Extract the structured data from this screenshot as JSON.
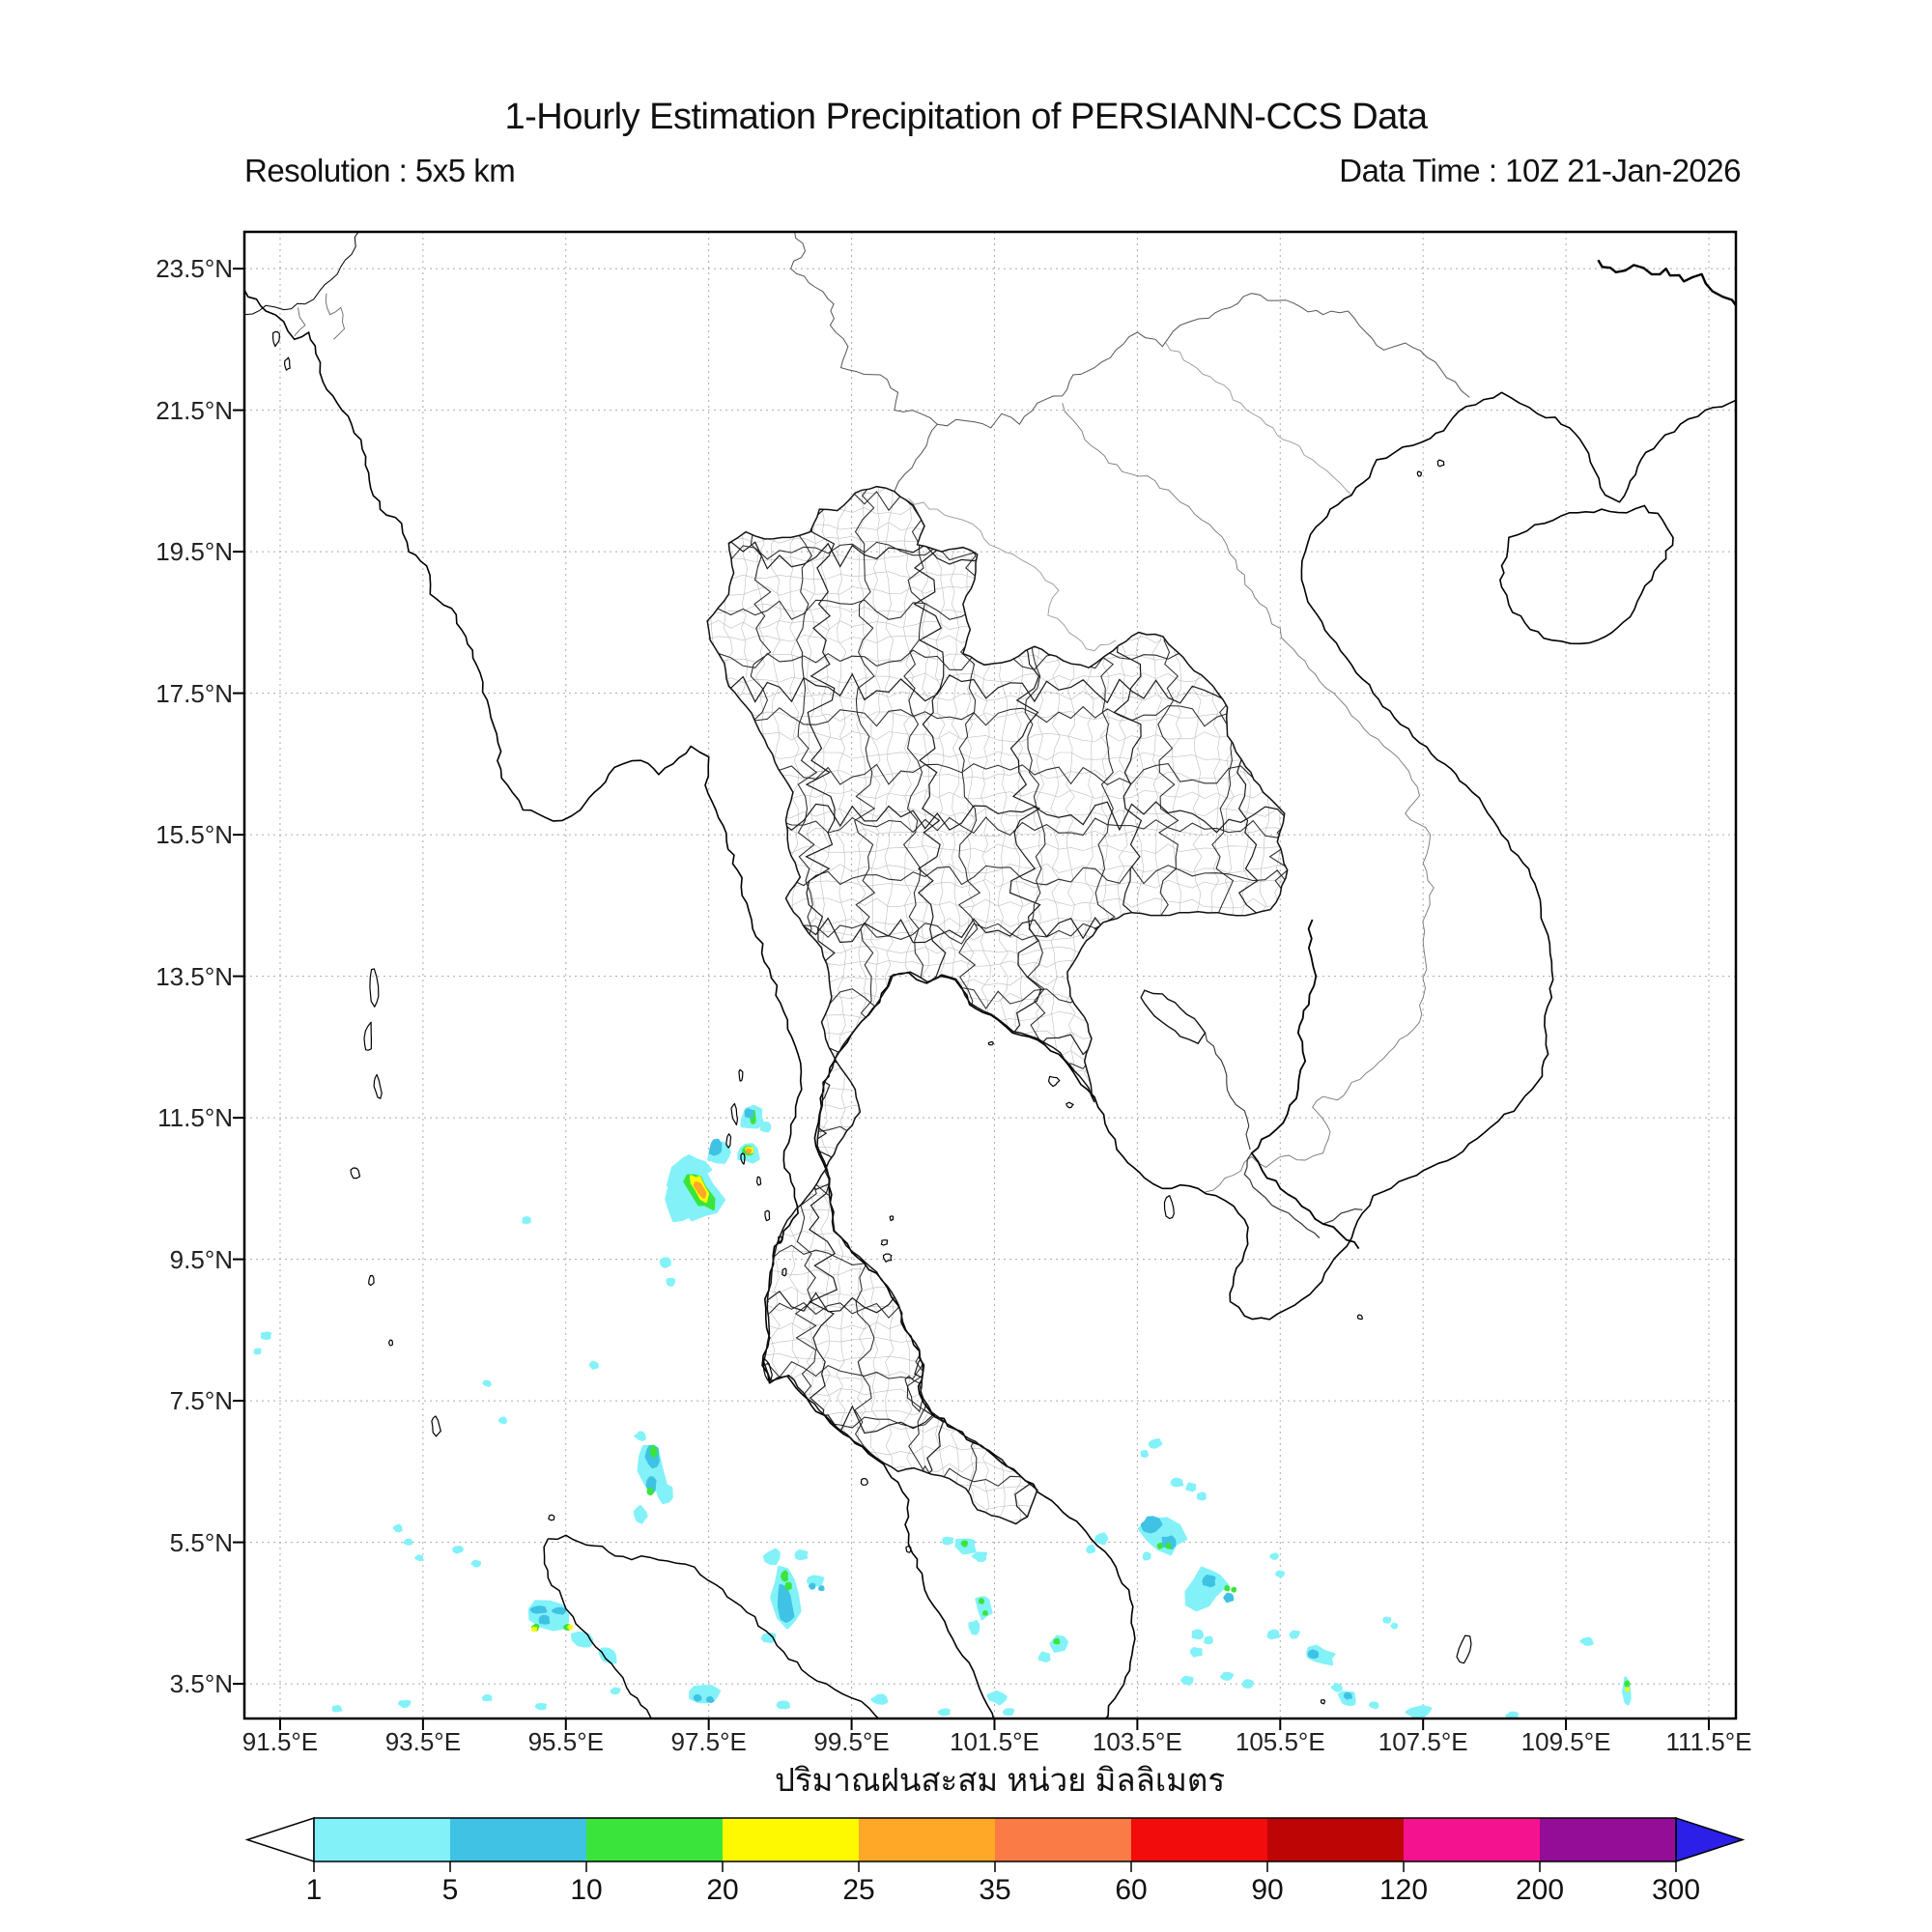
{
  "header": {
    "title": "1-Hourly Estimation Precipitation of PERSIANN-CCS Data",
    "resolution": "Resolution : 5x5 km",
    "data_time": "Data Time : 10Z 21-Jan-2026"
  },
  "axes": {
    "lat_ticks": [
      "23.5°N",
      "21.5°N",
      "19.5°N",
      "17.5°N",
      "15.5°N",
      "13.5°N",
      "11.5°N",
      "9.5°N",
      "7.5°N",
      "5.5°N",
      "3.5°N"
    ],
    "lon_ticks": [
      "91.5°E",
      "93.5°E",
      "95.5°E",
      "97.5°E",
      "99.5°E",
      "101.5°E",
      "103.5°E",
      "105.5°E",
      "107.5°E",
      "109.5°E",
      "111.5°E"
    ]
  },
  "legend": {
    "unit_label": "ปริมาณฝนสะสม หน่วย มิลลิเมตร",
    "tick_labels": [
      "1",
      "5",
      "10",
      "20",
      "25",
      "35",
      "60",
      "90",
      "120",
      "200",
      "300"
    ],
    "colors": [
      "#82F2F8",
      "#3FC2E4",
      "#3BE43B",
      "#FFF900",
      "#FFA726",
      "#FB7B46",
      "#F20C0C",
      "#BE0505",
      "#F5128F",
      "#930D96"
    ],
    "over_color": "#2B1FE8",
    "under_color": "#FFFFFF",
    "frame_color": "#000000"
  },
  "map": {
    "grid_color": "#ABABAB",
    "precipitation_cells": [
      [
        "c1",
        97.1,
        10.28,
        0.2,
        0.27,
        25
      ],
      [
        "c1",
        97.34,
        10.44,
        0.3,
        0.44,
        32
      ],
      [
        "c10",
        97.36,
        10.48,
        0.12,
        0.3,
        30
      ],
      [
        "c20",
        97.38,
        10.5,
        0.07,
        0.2,
        30
      ],
      [
        "c25",
        97.38,
        10.49,
        0.042,
        0.13,
        30
      ],
      [
        "c1",
        97.66,
        11.02,
        0.17,
        0.15,
        0
      ],
      [
        "c5",
        97.6,
        11.08,
        0.08,
        0.1,
        0
      ],
      [
        "c1",
        98.06,
        11.0,
        0.15,
        0.12,
        0
      ],
      [
        "c10",
        98.05,
        11.03,
        0.07,
        0.05,
        0
      ],
      [
        "c20",
        98.07,
        11.04,
        0.045,
        0.035,
        0
      ],
      [
        "c25",
        98.06,
        11.03,
        0.022,
        0.018,
        0
      ],
      [
        "c1",
        97.32,
        10.82,
        0.2,
        0.1,
        -35
      ],
      [
        "c1",
        98.1,
        11.5,
        0.16,
        0.13,
        10
      ],
      [
        "c1",
        98.3,
        11.37,
        0.07,
        0.05,
        0
      ],
      [
        "c10",
        98.12,
        11.5,
        0.025,
        0.08,
        0
      ],
      [
        "c5",
        98.07,
        11.56,
        0.05,
        0.05,
        0
      ],
      [
        "c1",
        97.0,
        10.2,
        0.05,
        0.04,
        0
      ],
      [
        "c1",
        96.9,
        9.45,
        0.07,
        0.05,
        0
      ],
      [
        "c1",
        96.97,
        9.18,
        0.05,
        0.04,
        0
      ],
      [
        "c1",
        94.95,
        10.05,
        0.05,
        0.035,
        0
      ],
      [
        "c1",
        91.3,
        8.42,
        0.06,
        0.04,
        0
      ],
      [
        "c1",
        91.18,
        8.2,
        0.04,
        0.03,
        0
      ],
      [
        "c1",
        95.9,
        8.0,
        0.05,
        0.04,
        0
      ],
      [
        "c1",
        94.4,
        7.75,
        0.04,
        0.03,
        0
      ],
      [
        "c1",
        94.62,
        7.22,
        0.04,
        0.03,
        0
      ],
      [
        "c1",
        96.7,
        6.55,
        0.17,
        0.4,
        12
      ],
      [
        "c1",
        96.9,
        6.2,
        0.1,
        0.12,
        0
      ],
      [
        "c5",
        96.72,
        6.72,
        0.08,
        0.15,
        8
      ],
      [
        "c10",
        96.73,
        6.78,
        0.035,
        0.06,
        0
      ],
      [
        "c5",
        96.7,
        6.3,
        0.05,
        0.1,
        0
      ],
      [
        "c10",
        96.68,
        6.22,
        0.027,
        0.035,
        0
      ],
      [
        "c1",
        96.55,
        7.0,
        0.06,
        0.05,
        0
      ],
      [
        "c1",
        96.55,
        5.9,
        0.08,
        0.1,
        20
      ],
      [
        "c1",
        98.6,
        4.75,
        0.18,
        0.42,
        8
      ],
      [
        "c1",
        98.4,
        5.3,
        0.1,
        0.09,
        0
      ],
      [
        "c5",
        98.58,
        4.6,
        0.09,
        0.25,
        8
      ],
      [
        "c10",
        98.56,
        5.02,
        0.035,
        0.06,
        0
      ],
      [
        "c10",
        98.62,
        4.88,
        0.03,
        0.04,
        0
      ],
      [
        "c1",
        98.8,
        5.32,
        0.07,
        0.05,
        0
      ],
      [
        "c1",
        98.35,
        4.15,
        0.08,
        0.06,
        0
      ],
      [
        "c1",
        95.3,
        4.45,
        0.3,
        0.2,
        -18
      ],
      [
        "c1",
        95.75,
        4.12,
        0.15,
        0.1,
        -25
      ],
      [
        "c1",
        96.1,
        3.9,
        0.12,
        0.08,
        -20
      ],
      [
        "c5",
        95.12,
        4.55,
        0.1,
        0.035,
        0
      ],
      [
        "c5",
        95.42,
        4.53,
        0.08,
        0.03,
        0
      ],
      [
        "c5",
        95.2,
        4.4,
        0.06,
        0.05,
        0
      ],
      [
        "c10",
        95.08,
        4.3,
        0.035,
        0.03,
        0
      ],
      [
        "c20",
        95.06,
        4.27,
        0.02,
        0.018,
        0
      ],
      [
        "c10",
        95.52,
        4.3,
        0.035,
        0.028,
        0
      ],
      [
        "c20",
        95.56,
        4.3,
        0.018,
        0.015,
        0
      ],
      [
        "c1",
        93.15,
        5.7,
        0.05,
        0.035,
        0
      ],
      [
        "c1",
        93.3,
        5.5,
        0.05,
        0.03,
        0
      ],
      [
        "c1",
        93.45,
        5.28,
        0.04,
        0.03,
        0
      ],
      [
        "c1",
        94.0,
        5.4,
        0.06,
        0.035,
        0
      ],
      [
        "c1",
        94.25,
        5.2,
        0.05,
        0.03,
        0
      ],
      [
        "c1",
        101.1,
        5.45,
        0.13,
        0.11,
        0
      ],
      [
        "c10",
        101.08,
        5.48,
        0.03,
        0.025,
        0
      ],
      [
        "c1",
        101.3,
        5.3,
        0.08,
        0.06,
        0
      ],
      [
        "c1",
        100.85,
        5.52,
        0.06,
        0.04,
        0
      ],
      [
        "c1",
        101.35,
        4.6,
        0.1,
        0.15,
        5
      ],
      [
        "c10",
        101.32,
        4.67,
        0.026,
        0.022,
        0
      ],
      [
        "c10",
        101.37,
        4.5,
        0.02,
        0.02,
        0
      ],
      [
        "c1",
        101.22,
        4.3,
        0.07,
        0.08,
        0
      ],
      [
        "c1",
        102.4,
        4.05,
        0.12,
        0.1,
        -10
      ],
      [
        "c10",
        102.37,
        4.1,
        0.028,
        0.024,
        0
      ],
      [
        "c1",
        102.2,
        3.88,
        0.07,
        0.05,
        0
      ],
      [
        "c1",
        103.85,
        5.62,
        0.3,
        0.22,
        -40
      ],
      [
        "c5",
        103.7,
        5.75,
        0.12,
        0.1,
        -30
      ],
      [
        "c5",
        103.95,
        5.5,
        0.09,
        0.08,
        0
      ],
      [
        "c10",
        103.82,
        5.45,
        0.028,
        0.024,
        0
      ],
      [
        "c10",
        103.94,
        5.45,
        0.026,
        0.022,
        0
      ],
      [
        "c1",
        104.05,
        6.35,
        0.08,
        0.05,
        0
      ],
      [
        "c1",
        104.25,
        6.28,
        0.06,
        0.04,
        0
      ],
      [
        "c1",
        104.4,
        6.15,
        0.05,
        0.04,
        0
      ],
      [
        "c1",
        103.63,
        5.3,
        0.05,
        0.04,
        0
      ],
      [
        "c1",
        104.45,
        4.85,
        0.22,
        0.3,
        -35
      ],
      [
        "c5",
        104.5,
        4.95,
        0.08,
        0.07,
        0
      ],
      [
        "c5",
        104.78,
        4.72,
        0.06,
        0.05,
        0
      ],
      [
        "c10",
        104.76,
        4.85,
        0.025,
        0.022,
        0
      ],
      [
        "c10",
        104.85,
        4.83,
        0.022,
        0.02,
        0
      ],
      [
        "c1",
        104.35,
        4.2,
        0.07,
        0.05,
        0
      ],
      [
        "c1",
        104.5,
        4.12,
        0.05,
        0.04,
        0
      ],
      [
        "c1",
        104.32,
        3.95,
        0.08,
        0.05,
        0
      ],
      [
        "c1",
        104.2,
        3.55,
        0.08,
        0.05,
        0
      ],
      [
        "c1",
        104.75,
        3.6,
        0.08,
        0.04,
        0
      ],
      [
        "c1",
        105.05,
        3.5,
        0.06,
        0.04,
        0
      ],
      [
        "c1",
        103.0,
        5.55,
        0.09,
        0.06,
        0
      ],
      [
        "c1",
        102.85,
        5.4,
        0.05,
        0.04,
        0
      ],
      [
        "c1",
        103.75,
        6.9,
        0.08,
        0.05,
        20
      ],
      [
        "c1",
        103.6,
        6.75,
        0.04,
        0.03,
        0
      ],
      [
        "c1",
        105.42,
        5.3,
        0.05,
        0.03,
        0
      ],
      [
        "c1",
        105.5,
        5.05,
        0.05,
        0.03,
        0
      ],
      [
        "c1",
        105.4,
        4.2,
        0.08,
        0.05,
        0
      ],
      [
        "c1",
        105.7,
        4.2,
        0.06,
        0.04,
        0
      ],
      [
        "c1",
        106.05,
        3.9,
        0.2,
        0.1,
        -15
      ],
      [
        "c5",
        105.97,
        3.92,
        0.06,
        0.05,
        0
      ],
      [
        "c1",
        106.3,
        3.45,
        0.06,
        0.04,
        0
      ],
      [
        "c1",
        106.45,
        3.3,
        0.12,
        0.08,
        -20
      ],
      [
        "c5",
        106.45,
        3.33,
        0.04,
        0.03,
        0
      ],
      [
        "c1",
        106.82,
        3.2,
        0.05,
        0.035,
        0
      ],
      [
        "c1",
        107.0,
        4.4,
        0.04,
        0.03,
        0
      ],
      [
        "c1",
        107.1,
        4.32,
        0.03,
        0.025,
        0
      ],
      [
        "c1",
        107.45,
        3.1,
        0.15,
        0.07,
        0
      ],
      [
        "c1",
        108.75,
        3.05,
        0.07,
        0.035,
        0
      ],
      [
        "c1",
        109.8,
        4.1,
        0.07,
        0.04,
        0
      ],
      [
        "c1",
        110.35,
        3.4,
        0.045,
        0.16,
        0
      ],
      [
        "c10",
        110.36,
        3.5,
        0.022,
        0.03,
        0
      ],
      [
        "c20",
        110.36,
        3.42,
        0.013,
        0.012,
        0
      ],
      [
        "c1",
        92.3,
        3.15,
        0.05,
        0.03,
        0
      ],
      [
        "c1",
        93.25,
        3.22,
        0.07,
        0.035,
        0
      ],
      [
        "c1",
        94.4,
        3.3,
        0.05,
        0.03,
        0
      ],
      [
        "c1",
        95.15,
        3.18,
        0.06,
        0.03,
        0
      ],
      [
        "c1",
        96.2,
        3.4,
        0.05,
        0.03,
        0
      ],
      [
        "c1",
        97.45,
        3.35,
        0.2,
        0.12,
        -10
      ],
      [
        "c5",
        97.35,
        3.3,
        0.04,
        0.03,
        0
      ],
      [
        "c5",
        97.52,
        3.28,
        0.035,
        0.028,
        0
      ],
      [
        "c1",
        98.55,
        3.2,
        0.08,
        0.04,
        0
      ],
      [
        "c1",
        99.9,
        3.28,
        0.1,
        0.05,
        0
      ],
      [
        "c1",
        100.8,
        3.1,
        0.07,
        0.035,
        0
      ],
      [
        "c1",
        101.55,
        3.3,
        0.12,
        0.07,
        -15
      ],
      [
        "c1",
        101.7,
        3.1,
        0.06,
        0.04,
        0
      ],
      [
        "c1",
        99.0,
        4.95,
        0.1,
        0.06,
        0
      ],
      [
        "c5",
        98.95,
        4.88,
        0.03,
        0.025,
        0
      ],
      [
        "c5",
        99.08,
        4.85,
        0.025,
        0.02,
        0
      ]
    ]
  }
}
